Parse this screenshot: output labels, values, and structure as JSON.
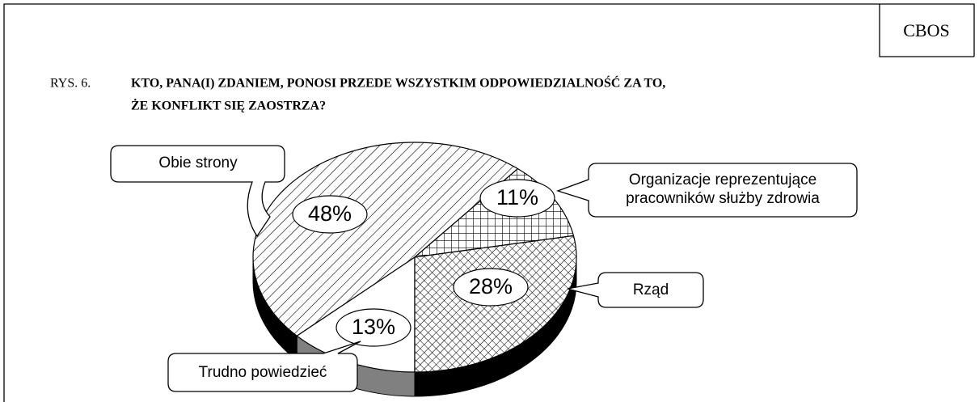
{
  "chart_data": {
    "type": "pie",
    "source": "CBOS",
    "figure_label": "RYS. 6.",
    "title": [
      "KTO, PANA(I) ZDANIEM, PONOSI PRZEDE WSZYSTKIM ODPOWIEDZIALNOŚĆ ZA TO,",
      "ŻE KONFLIKT SIĘ ZAOSTRZA?"
    ],
    "categories": [
      "Trudno powiedzieć",
      "Obie strony",
      "Organizacje reprezentujące pracowników służby zdrowia",
      "Rząd"
    ],
    "values": [
      13,
      48,
      11,
      28
    ],
    "value_labels": [
      "13%",
      "48%",
      "11%",
      "28%"
    ]
  }
}
